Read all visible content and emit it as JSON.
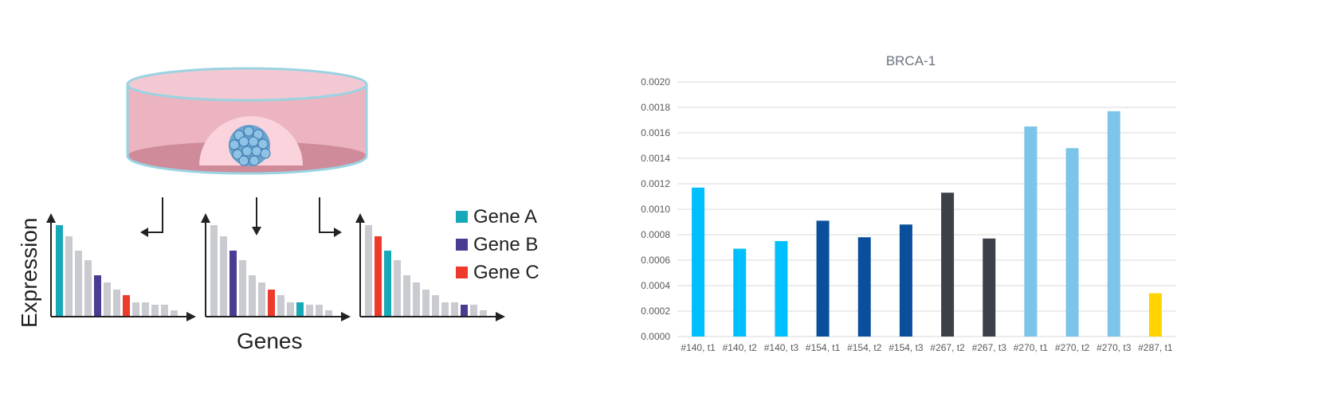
{
  "illustration": {
    "y_axis_label": "Expression",
    "x_axis_label": "Genes",
    "legend": [
      {
        "label": "Gene A",
        "color": "#17a9b8"
      },
      {
        "label": "Gene B",
        "color": "#4b3c93"
      },
      {
        "label": "Gene C",
        "color": "#ee3a2a"
      }
    ],
    "other_gene_color": "#c9cbd1",
    "dish_color": "#ecb3c0",
    "spheroid_color": "#6aa4cf"
  },
  "chart_data": {
    "type": "bar",
    "title": "BRCA-1",
    "xlabel": "",
    "ylabel": "",
    "ylim": [
      0,
      0.002
    ],
    "yticks": [
      "0.0000",
      "0.0002",
      "0.0004",
      "0.0006",
      "0.0008",
      "0.0010",
      "0.0012",
      "0.0014",
      "0.0016",
      "0.0018",
      "0.0020"
    ],
    "grid": true,
    "categories": [
      "#140, t1",
      "#140, t2",
      "#140, t3",
      "#154, t1",
      "#154, t2",
      "#154, t3",
      "#267, t2",
      "#267, t3",
      "#270, t1",
      "#270, t2",
      "#270, t3",
      "#287, t1"
    ],
    "values": [
      0.00117,
      0.00069,
      0.00075,
      0.00091,
      0.00078,
      0.00088,
      0.00113,
      0.00077,
      0.00165,
      0.00148,
      0.00177,
      0.00034
    ],
    "colors": [
      "#00bfff",
      "#00bfff",
      "#00bfff",
      "#0a4f9c",
      "#0a4f9c",
      "#0a4f9c",
      "#3b4049",
      "#3b4049",
      "#7cc4e8",
      "#7cc4e8",
      "#7cc4e8",
      "#ffd400"
    ]
  }
}
